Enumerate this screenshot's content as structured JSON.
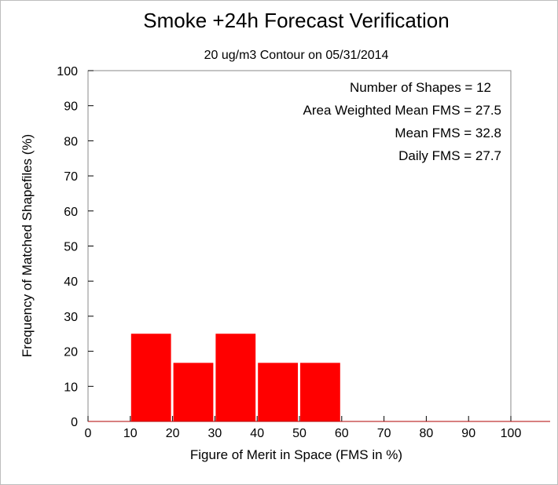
{
  "chart_data": {
    "type": "bar",
    "title": "Smoke +24h Forecast Verification",
    "subtitle": "20 ug/m3 Contour on 05/31/2014",
    "xlabel": "Figure of Merit in Space (FMS in %)",
    "ylabel": "Frequency of Matched Shapefiles (%)",
    "xlim": [
      0,
      100
    ],
    "ylim": [
      0,
      100
    ],
    "x_ticks": [
      "0",
      "10",
      "20",
      "30",
      "40",
      "50",
      "60",
      "70",
      "80",
      "90",
      "100"
    ],
    "y_ticks": [
      "0",
      "10",
      "20",
      "30",
      "40",
      "50",
      "60",
      "70",
      "80",
      "90",
      "100"
    ],
    "bin_width": 10,
    "bins": [
      {
        "start": 0,
        "end": 10,
        "value": 0
      },
      {
        "start": 10,
        "end": 20,
        "value": 25
      },
      {
        "start": 20,
        "end": 30,
        "value": 16.7
      },
      {
        "start": 30,
        "end": 40,
        "value": 25
      },
      {
        "start": 40,
        "end": 50,
        "value": 16.7
      },
      {
        "start": 50,
        "end": 60,
        "value": 16.7
      },
      {
        "start": 60,
        "end": 70,
        "value": 0
      },
      {
        "start": 70,
        "end": 80,
        "value": 0
      },
      {
        "start": 80,
        "end": 90,
        "value": 0
      },
      {
        "start": 90,
        "end": 100,
        "value": 0
      }
    ],
    "bar_color": "#ff0000",
    "grid": false,
    "stats": [
      "Number of Shapes = 12",
      "Area Weighted Mean FMS = 27.5",
      "Mean FMS = 32.8",
      "Daily FMS = 27.7"
    ]
  }
}
